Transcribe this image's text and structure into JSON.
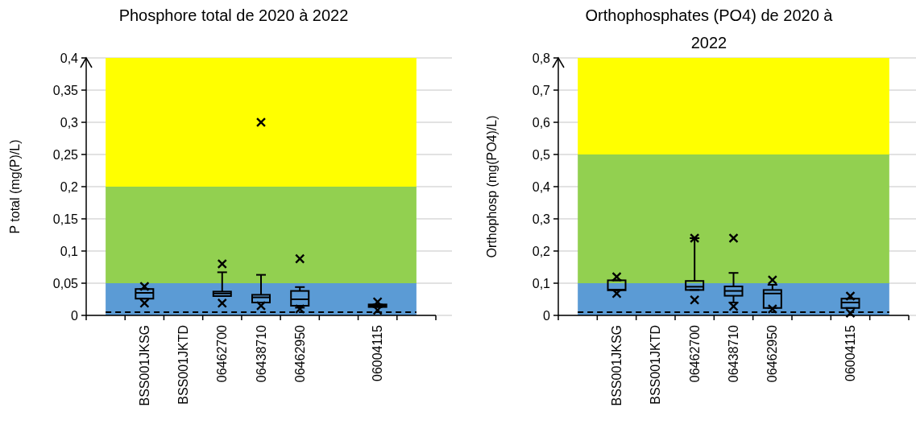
{
  "chart_data": [
    {
      "type": "box",
      "title": "Phosphore total de 2020 à 2022",
      "ylabel": "P total (mg(P)/L)",
      "categories": [
        null,
        "BSS001JKSG",
        "BSS001JKTD",
        "06462700",
        "06438710",
        "06462950",
        null,
        "06004115",
        null
      ],
      "boxes": [
        null,
        {
          "low": 0.026,
          "q1": 0.026,
          "median": 0.035,
          "q3": 0.041,
          "high": 0.041
        },
        null,
        {
          "low": 0.03,
          "q1": 0.03,
          "median": 0.034,
          "q3": 0.037,
          "high": 0.067
        },
        {
          "low": 0.02,
          "q1": 0.02,
          "median": 0.028,
          "q3": 0.032,
          "high": 0.063
        },
        {
          "low": 0.012,
          "q1": 0.015,
          "median": 0.025,
          "q3": 0.038,
          "high": 0.044
        },
        null,
        {
          "low": 0.013,
          "q1": 0.013,
          "median": 0.015,
          "q3": 0.017,
          "high": 0.017
        },
        null
      ],
      "series": [
        {
          "type": "scatter",
          "marker": "cross",
          "color": "#000000",
          "values": [
            null,
            0.045,
            null,
            0.08,
            0.3,
            0.088,
            null,
            0.021,
            null
          ]
        },
        {
          "type": "scatter",
          "marker": "cross",
          "color": "#000000",
          "values": [
            null,
            0.019,
            null,
            0.019,
            0.015,
            0.01,
            null,
            0.008,
            null
          ]
        }
      ],
      "ylim": [
        0,
        0.4
      ],
      "yticks": [
        0,
        {
          "value": 0.05,
          "label": "0,05"
        },
        {
          "value": 0.1,
          "label": "0,1"
        },
        {
          "value": 0.15,
          "label": "0,15"
        },
        {
          "value": 0.2,
          "label": "0,2"
        },
        {
          "value": 0.25,
          "label": "0,25"
        },
        {
          "value": 0.3,
          "label": "0,3"
        },
        {
          "value": 0.35,
          "label": "0,35"
        },
        {
          "value": 0.4,
          "label": "0,4"
        }
      ],
      "grid": "y",
      "bands": [
        {
          "axis": "y",
          "from": 0,
          "to": 0.05,
          "color": "#5b9bd5"
        },
        {
          "axis": "y",
          "from": 0.05,
          "to": 0.2,
          "color": "#92d050"
        },
        {
          "axis": "y",
          "from": 0.2,
          "to": 0.4,
          "color": "#ffff00"
        }
      ],
      "ref_lines": [
        {
          "axis": "y",
          "value": 0.005,
          "color": "#000000",
          "line_style": "dashed"
        }
      ]
    },
    {
      "type": "box",
      "title": "Orthophosphates (PO4) de 2020 à 2022",
      "ylabel": "Orthophosp (mg(PO4)/L)",
      "categories": [
        null,
        "BSS001JKSG",
        "BSS001JKTD",
        "06462700",
        "06438710",
        "06462950",
        null,
        "06004115",
        null
      ],
      "boxes": [
        null,
        {
          "low": 0.078,
          "q1": 0.078,
          "median": 0.08,
          "q3": 0.109,
          "high": 0.109
        },
        null,
        {
          "low": 0.079,
          "q1": 0.079,
          "median": 0.089,
          "q3": 0.107,
          "high": 0.24
        },
        {
          "low": 0.04,
          "q1": 0.061,
          "median": 0.076,
          "q3": 0.09,
          "high": 0.132
        },
        {
          "low": 0.023,
          "q1": 0.023,
          "median": 0.068,
          "q3": 0.079,
          "high": 0.095
        },
        null,
        {
          "low": 0.023,
          "q1": 0.023,
          "median": 0.04,
          "q3": 0.052,
          "high": 0.052
        },
        null
      ],
      "series": [
        {
          "type": "scatter",
          "marker": "cross",
          "color": "#000000",
          "values": [
            null,
            0.12,
            null,
            0.24,
            0.24,
            0.11,
            null,
            0.06,
            null
          ]
        },
        {
          "type": "scatter",
          "marker": "cross",
          "color": "#000000",
          "values": [
            null,
            0.068,
            null,
            0.048,
            0.028,
            0.02,
            null,
            0.007,
            null
          ]
        }
      ],
      "ylim": [
        0,
        0.8
      ],
      "yticks": [
        0,
        {
          "value": 0.1,
          "label": "0,1"
        },
        {
          "value": 0.2,
          "label": "0,2"
        },
        {
          "value": 0.3,
          "label": "0,3"
        },
        {
          "value": 0.4,
          "label": "0,4"
        },
        {
          "value": 0.5,
          "label": "0,5"
        },
        {
          "value": 0.6,
          "label": "0,6"
        },
        {
          "value": 0.7,
          "label": "0,7"
        },
        {
          "value": 0.8,
          "label": "0,8"
        }
      ],
      "grid": "y",
      "bands": [
        {
          "axis": "y",
          "from": 0,
          "to": 0.1,
          "color": "#5b9bd5"
        },
        {
          "axis": "y",
          "from": 0.1,
          "to": 0.5,
          "color": "#92d050"
        },
        {
          "axis": "y",
          "from": 0.5,
          "to": 0.8,
          "color": "#ffff00"
        }
      ],
      "ref_lines": [
        {
          "axis": "y",
          "value": 0.01,
          "color": "#000000",
          "line_style": "dashed"
        }
      ]
    }
  ]
}
